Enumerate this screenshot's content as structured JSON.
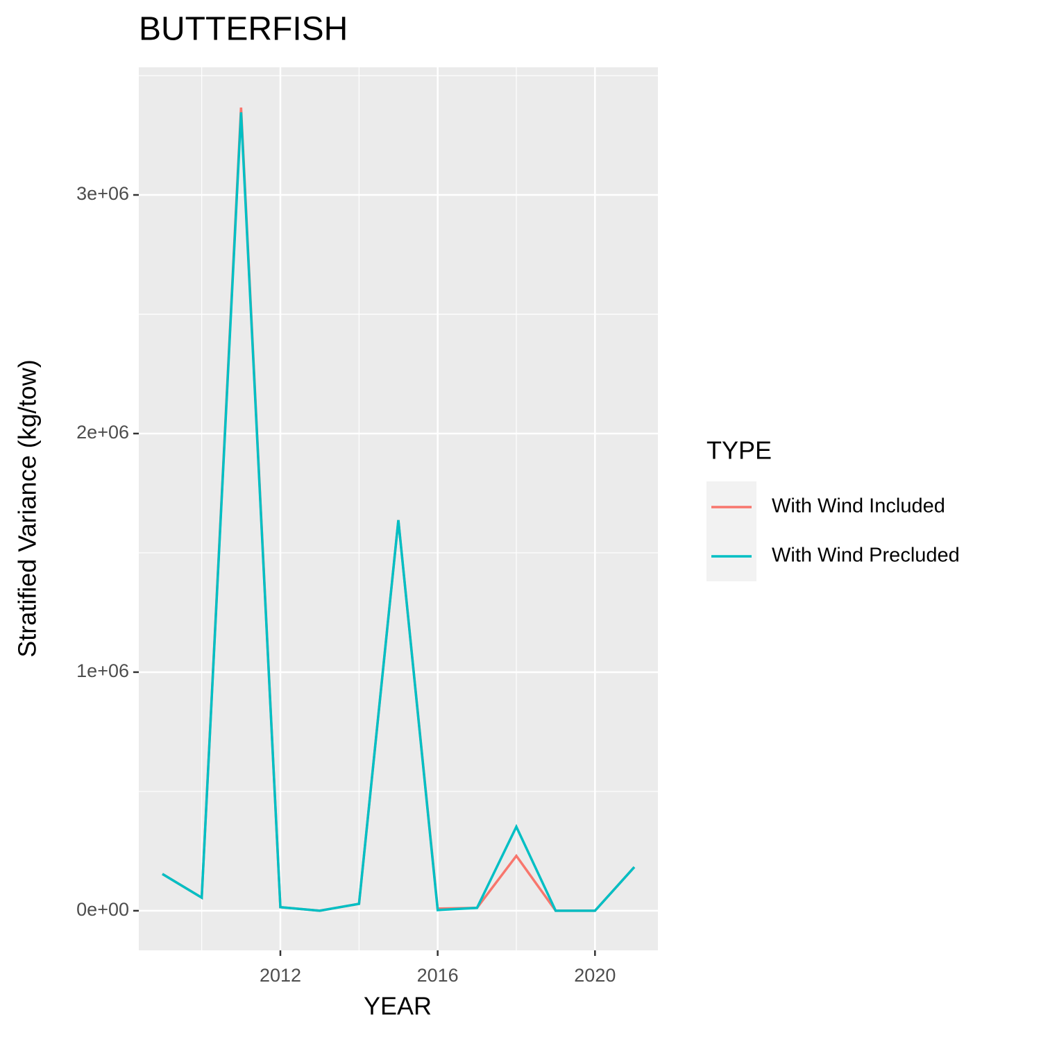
{
  "chart_data": {
    "type": "line",
    "title": "BUTTERFISH",
    "x_label": "YEAR",
    "y_label": "Stratified Variance (kg/tow)",
    "x": [
      2009,
      2010,
      2011,
      2012,
      2013,
      2014,
      2015,
      2016,
      2017,
      2018,
      2019,
      2020,
      2021
    ],
    "series": [
      {
        "name": "With Wind Included",
        "color": "#F8766D",
        "values": [
          154000,
          55000,
          3366000,
          15000,
          0,
          29000,
          1637000,
          9000,
          12000,
          230000,
          0,
          0,
          183000
        ]
      },
      {
        "name": "With Wind Precluded",
        "color": "#00BFC4",
        "values": [
          154000,
          55000,
          3346000,
          15000,
          0,
          29000,
          1637000,
          3000,
          12000,
          352000,
          0,
          0,
          183000
        ]
      }
    ],
    "xlim": [
      2008.4,
      2021.6
    ],
    "xticks": [
      2012,
      2016,
      2020
    ],
    "ylim": [
      -166000,
      3535000
    ],
    "yticks": [
      {
        "value": 0,
        "label": "0e+00"
      },
      {
        "value": 1000000,
        "label": "1e+06"
      },
      {
        "value": 2000000,
        "label": "2e+06"
      },
      {
        "value": 3000000,
        "label": "3e+06"
      }
    ],
    "legend_title": "TYPE",
    "legend_position": "right",
    "grid": true
  }
}
